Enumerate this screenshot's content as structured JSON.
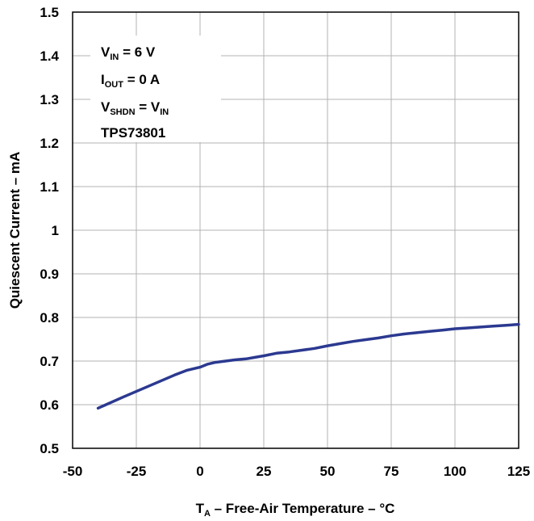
{
  "chart_data": {
    "type": "line",
    "xlabel": {
      "main": "T",
      "sub": "A",
      "rest": " – Free-Air Temperature – °C"
    },
    "ylabel": "Quiescent Current – mA",
    "xlim": [
      -50,
      125
    ],
    "ylim": [
      0.5,
      1.5
    ],
    "xticks": [
      -50,
      -25,
      0,
      25,
      50,
      75,
      100,
      125
    ],
    "yticks": [
      0.5,
      0.6,
      0.7,
      0.8,
      0.9,
      1,
      1.1,
      1.2,
      1.3,
      1.4,
      1.5
    ],
    "xtick_labels": [
      "-50",
      "-25",
      "0",
      "25",
      "50",
      "75",
      "100",
      "125"
    ],
    "ytick_labels": [
      "0.5",
      "0.6",
      "0.7",
      "0.8",
      "0.9",
      "1",
      "1.1",
      "1.2",
      "1.3",
      "1.4",
      "1.5"
    ],
    "grid": true,
    "line_color": "#2b3990",
    "annotations": [
      {
        "main": "V",
        "sub": "IN",
        "rest": " = 6 V"
      },
      {
        "main": "I",
        "sub": "OUT",
        "rest": " = 0 A"
      },
      {
        "main": "V",
        "sub": "SHDN",
        "rest": " = V",
        "sub2": "IN"
      },
      {
        "main": "TPS73801"
      }
    ],
    "series": [
      {
        "x": [
          -40,
          -30,
          -20,
          -10,
          -5,
          0,
          3,
          6,
          10,
          14,
          18,
          22,
          25,
          30,
          35,
          40,
          45,
          50,
          55,
          60,
          65,
          70,
          75,
          80,
          85,
          90,
          95,
          100,
          105,
          110,
          115,
          120,
          125
        ],
        "y": [
          0.592,
          0.618,
          0.643,
          0.668,
          0.679,
          0.686,
          0.693,
          0.697,
          0.7,
          0.703,
          0.705,
          0.709,
          0.712,
          0.718,
          0.721,
          0.725,
          0.729,
          0.735,
          0.74,
          0.745,
          0.749,
          0.753,
          0.758,
          0.762,
          0.765,
          0.768,
          0.771,
          0.774,
          0.776,
          0.778,
          0.78,
          0.782,
          0.784
        ]
      }
    ]
  }
}
